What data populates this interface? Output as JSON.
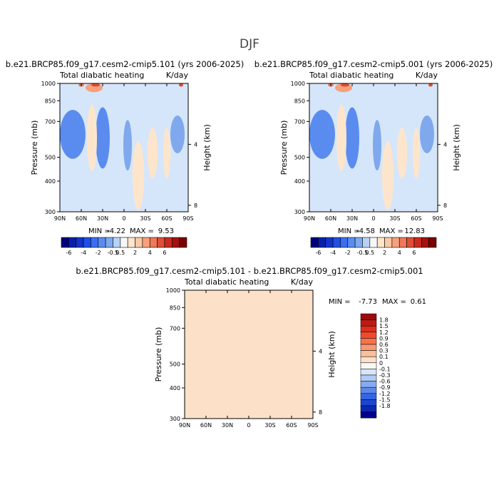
{
  "page": {
    "title": "DJF"
  },
  "panels": [
    {
      "case": "b.e21.BRCP85.f09_g17.cesm2-cmip5.101 (yrs 2006-2025)",
      "variable": "Total diabatic heating",
      "units": "K/day",
      "min_label": "MIN =",
      "min_value": "-4.22",
      "max_label": "MAX =",
      "max_value": "9.53"
    },
    {
      "case": "b.e21.BRCP85.f09_g17.cesm2-cmip5.001 (yrs 2006-2025)",
      "variable": "Total diabatic heating",
      "units": "K/day",
      "min_label": "MIN =",
      "min_value": "-4.58",
      "max_label": "MAX =",
      "max_value": "12.83"
    },
    {
      "case": "b.e21.BRCP85.f09_g17.cesm2-cmip5.101 - b.e21.BRCP85.f09_g17.cesm2-cmip5.001",
      "variable": "Total diabatic heating",
      "units": "K/day",
      "min_label": "MIN =",
      "min_value": "-7.73",
      "max_label": "MAX =",
      "max_value": "0.61"
    }
  ],
  "chart_data": {
    "type": "heatmap",
    "ylabel": "Pressure (mb)",
    "y2label": "Height (km)",
    "x_ticks": [
      "90N",
      "60N",
      "30N",
      "0",
      "30S",
      "60S",
      "90S"
    ],
    "x_range": [
      90,
      -90
    ],
    "y_ticks": [
      300,
      400,
      500,
      700,
      850,
      1000
    ],
    "y_range": [
      1000,
      300
    ],
    "y_scale": "log",
    "height_ticks": [
      "8",
      "4"
    ],
    "height_tick_values_km": [
      8,
      4
    ],
    "colorbar_main": {
      "labels": [
        "-6",
        "-4",
        "-2",
        "-0.5",
        "0.5",
        "2",
        "4",
        "6"
      ],
      "levels": [
        -6,
        -5,
        -4,
        -3,
        -2,
        -1,
        -0.5,
        0.5,
        1,
        2,
        3,
        4,
        5,
        6
      ],
      "colors": [
        "#00007f",
        "#0a1fa8",
        "#1533c8",
        "#1f4fe6",
        "#3a6ff2",
        "#5a8cf0",
        "#7fa9ec",
        "#b6d3f6",
        "#f7f7f7",
        "#fde5cc",
        "#fbc9a4",
        "#f6a07c",
        "#ee7858",
        "#de4e36",
        "#c92a1e",
        "#a3120c",
        "#7a0000"
      ]
    },
    "colorbar_diff": {
      "labels": [
        "1.8",
        "1.5",
        "1.2",
        "0.9",
        "0.6",
        "0.3",
        "0.1",
        "0",
        "-0.1",
        "-0.3",
        "-0.6",
        "-0.9",
        "-1.2",
        "-1.5",
        "-1.8"
      ],
      "colors": [
        "#9a0c0c",
        "#be1a14",
        "#dd2e1c",
        "#f04a2c",
        "#f6714c",
        "#f99872",
        "#fbbf9c",
        "#fde0c8",
        "#f7f7f7",
        "#d6e6fa",
        "#b0cbf4",
        "#86aaf0",
        "#5d89ea",
        "#3566e2",
        "#1b45d2",
        "#0a28b4",
        "#00008c"
      ]
    }
  }
}
